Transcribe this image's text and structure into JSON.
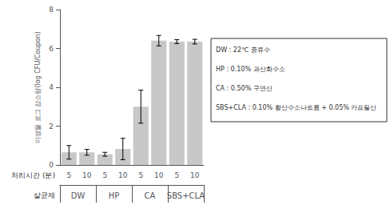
{
  "chart_data": {
    "type": "bar",
    "ylabel": "미생물 로그 감소량(log CFU/Coupon)",
    "xlabel": "처리시간 (분)",
    "group_xlabel": "살균제",
    "groups": [
      "DW",
      "HP",
      "CA",
      "SBS+CLA"
    ],
    "categories": [
      "5",
      "10",
      "5",
      "10",
      "5",
      "10",
      "5",
      "10"
    ],
    "values": [
      0.65,
      0.65,
      0.55,
      0.82,
      3.0,
      6.4,
      6.35,
      6.35
    ],
    "errors": [
      0.35,
      0.15,
      0.1,
      0.55,
      0.85,
      0.27,
      0.1,
      0.12
    ],
    "color": "#c8c8c8",
    "ylim": [
      0,
      8
    ],
    "yticks": [
      0,
      2,
      4,
      6,
      8
    ],
    "grid": false,
    "annotations": [
      "DW : 22℃ 증류수",
      "HP : 0.10% 과산화수소",
      "CA : 0.50% 구연산",
      "SBS+CLA : 0.10% 황산수소나트륨 + 0.05% 카프릴산"
    ]
  }
}
